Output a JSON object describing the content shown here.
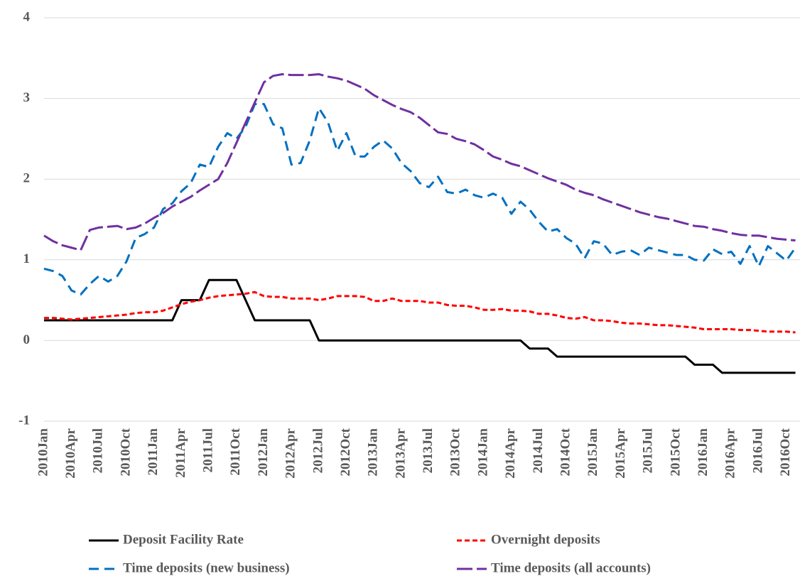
{
  "chart_data": {
    "type": "line",
    "categories": [
      "2010Jan",
      null,
      null,
      "2010Apr",
      null,
      null,
      "2010Jul",
      null,
      null,
      "2010Oct",
      null,
      null,
      "2011Jan",
      null,
      null,
      "2011Apr",
      null,
      null,
      "2011Jul",
      null,
      null,
      "2011Oct",
      null,
      null,
      "2012Jan",
      null,
      null,
      "2012Apr",
      null,
      null,
      "2012Jul",
      null,
      null,
      "2012Oct",
      null,
      null,
      "2013Jan",
      null,
      null,
      "2013Apr",
      null,
      null,
      "2013Jul",
      null,
      null,
      "2013Oct",
      null,
      null,
      "2014Jan",
      null,
      null,
      "2014Apr",
      null,
      null,
      "2014Jul",
      null,
      null,
      "2014Oct",
      null,
      null,
      "2015Jan",
      null,
      null,
      "2015Apr",
      null,
      null,
      "2015Jul",
      null,
      null,
      "2015Oct",
      null,
      null,
      "2016Jan",
      null,
      null,
      "2016Apr",
      null,
      null,
      "2016Jul",
      null,
      null,
      "2016Oct",
      null
    ],
    "series": [
      {
        "name": "Deposit Facility Rate",
        "color": "#000000",
        "dash": "solid",
        "values": [
          0.25,
          0.25,
          0.25,
          0.25,
          0.25,
          0.25,
          0.25,
          0.25,
          0.25,
          0.25,
          0.25,
          0.25,
          0.25,
          0.25,
          0.25,
          0.5,
          0.5,
          0.5,
          0.75,
          0.75,
          0.75,
          0.75,
          0.5,
          0.25,
          0.25,
          0.25,
          0.25,
          0.25,
          0.25,
          0.25,
          0,
          0,
          0,
          0,
          0,
          0,
          0,
          0,
          0,
          0,
          0,
          0,
          0,
          0,
          0,
          0,
          0,
          0,
          0,
          0,
          0,
          0,
          0,
          -0.1,
          -0.1,
          -0.1,
          -0.2,
          -0.2,
          -0.2,
          -0.2,
          -0.2,
          -0.2,
          -0.2,
          -0.2,
          -0.2,
          -0.2,
          -0.2,
          -0.2,
          -0.2,
          -0.2,
          -0.2,
          -0.3,
          -0.3,
          -0.3,
          -0.4,
          -0.4,
          -0.4,
          -0.4,
          -0.4,
          -0.4,
          -0.4,
          -0.4,
          -0.4
        ]
      },
      {
        "name": "Overnight deposits",
        "color": "#ff0000",
        "dash": "short-dash",
        "values": [
          0.28,
          0.28,
          0.27,
          0.26,
          0.27,
          0.28,
          0.29,
          0.3,
          0.31,
          0.32,
          0.34,
          0.35,
          0.35,
          0.37,
          0.41,
          0.45,
          0.48,
          0.5,
          0.53,
          0.55,
          0.56,
          0.57,
          0.58,
          0.6,
          0.55,
          0.54,
          0.54,
          0.52,
          0.52,
          0.52,
          0.5,
          0.52,
          0.55,
          0.55,
          0.55,
          0.54,
          0.49,
          0.49,
          0.52,
          0.49,
          0.49,
          0.49,
          0.47,
          0.47,
          0.44,
          0.43,
          0.43,
          0.41,
          0.38,
          0.38,
          0.39,
          0.37,
          0.37,
          0.36,
          0.33,
          0.33,
          0.31,
          0.28,
          0.27,
          0.29,
          0.25,
          0.25,
          0.24,
          0.22,
          0.21,
          0.21,
          0.2,
          0.19,
          0.19,
          0.18,
          0.17,
          0.16,
          0.14,
          0.14,
          0.14,
          0.14,
          0.13,
          0.13,
          0.12,
          0.11,
          0.11,
          0.11,
          0.1
        ]
      },
      {
        "name": "Time deposits (new business)",
        "color": "#0070c0",
        "dash": "dash",
        "values": [
          0.89,
          0.86,
          0.8,
          0.62,
          0.57,
          0.7,
          0.8,
          0.73,
          0.8,
          0.98,
          1.27,
          1.32,
          1.4,
          1.63,
          1.7,
          1.85,
          1.95,
          2.18,
          2.15,
          2.4,
          2.57,
          2.5,
          2.65,
          2.93,
          2.93,
          2.68,
          2.63,
          2.18,
          2.2,
          2.48,
          2.88,
          2.7,
          2.35,
          2.57,
          2.28,
          2.28,
          2.4,
          2.48,
          2.38,
          2.2,
          2.1,
          1.95,
          1.9,
          2.03,
          1.84,
          1.82,
          1.87,
          1.8,
          1.77,
          1.82,
          1.77,
          1.57,
          1.72,
          1.62,
          1.47,
          1.35,
          1.38,
          1.27,
          1.2,
          1.02,
          1.23,
          1.2,
          1.06,
          1.1,
          1.12,
          1.06,
          1.15,
          1.12,
          1.09,
          1.06,
          1.06,
          1.0,
          0.99,
          1.13,
          1.07,
          1.1,
          0.95,
          1.17,
          0.92,
          1.17,
          1.08,
          0.99,
          1.15
        ]
      },
      {
        "name": "Time deposits (all accounts)",
        "color": "#7030a0",
        "dash": "long-dash",
        "values": [
          1.3,
          1.23,
          1.18,
          1.15,
          1.12,
          1.37,
          1.4,
          1.41,
          1.42,
          1.38,
          1.4,
          1.45,
          1.52,
          1.58,
          1.66,
          1.72,
          1.78,
          1.86,
          1.93,
          2.0,
          2.2,
          2.45,
          2.7,
          2.95,
          3.2,
          3.28,
          3.3,
          3.29,
          3.29,
          3.29,
          3.3,
          3.27,
          3.25,
          3.22,
          3.17,
          3.12,
          3.04,
          2.98,
          2.92,
          2.87,
          2.83,
          2.76,
          2.67,
          2.58,
          2.56,
          2.5,
          2.47,
          2.43,
          2.36,
          2.28,
          2.24,
          2.19,
          2.16,
          2.11,
          2.06,
          2.01,
          1.97,
          1.93,
          1.87,
          1.83,
          1.8,
          1.75,
          1.71,
          1.67,
          1.63,
          1.59,
          1.56,
          1.53,
          1.51,
          1.48,
          1.45,
          1.42,
          1.41,
          1.38,
          1.36,
          1.33,
          1.31,
          1.3,
          1.3,
          1.28,
          1.26,
          1.25,
          1.24
        ]
      }
    ],
    "ylim": [
      -1,
      4
    ],
    "yticks": [
      -1,
      0,
      1,
      2,
      3,
      4
    ],
    "grid": true,
    "legend": "bottom"
  }
}
